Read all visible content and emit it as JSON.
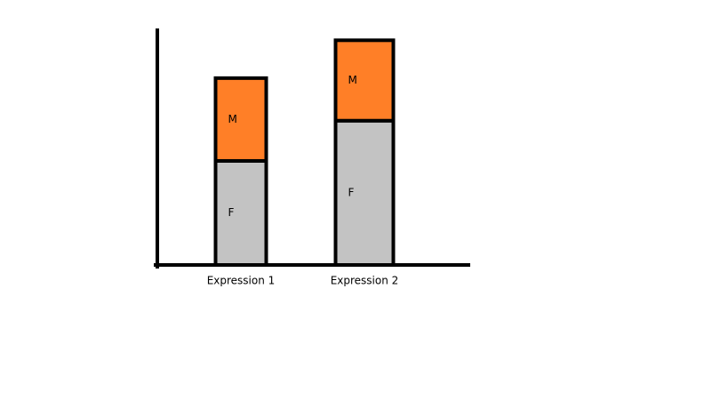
{
  "chart_data": {
    "type": "stacked_bar",
    "categories": [
      "Expression 1",
      "Expression 2"
    ],
    "series": [
      {
        "name": "F",
        "color": "#c3c3c3",
        "values": [
          44,
          61
        ]
      },
      {
        "name": "M",
        "color": "#ff7f27",
        "values": [
          35,
          34
        ]
      }
    ],
    "ylim": [
      0,
      100
    ]
  }
}
